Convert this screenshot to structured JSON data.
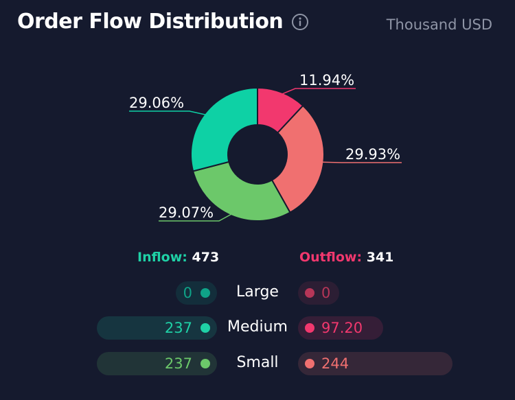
{
  "header": {
    "title": "Order Flow Distribution",
    "info_icon": "info-circle-icon",
    "unit": "Thousand USD"
  },
  "chart_data": {
    "type": "pie",
    "donut": true,
    "slices": [
      {
        "label": "11.94%",
        "value": 11.94,
        "color": "#f2386e"
      },
      {
        "label": "29.93%",
        "value": 29.93,
        "color": "#f07070"
      },
      {
        "label": "29.07%",
        "value": 29.07,
        "color": "#6cc86a"
      },
      {
        "label": "29.06%",
        "value": 29.06,
        "color": "#0ed1a5"
      }
    ]
  },
  "totals": {
    "inflow_label": "Inflow:",
    "inflow_value": "473",
    "outflow_label": "Outflow:",
    "outflow_value": "341"
  },
  "rows": [
    {
      "label": "Large",
      "inflow": "0",
      "outflow": "0",
      "inflow_color": "#0fa388",
      "outflow_color": "#b63658",
      "inflow_fraction": 0.08,
      "outflow_fraction": 0.08
    },
    {
      "label": "Medium",
      "inflow": "237",
      "outflow": "97.20",
      "inflow_color": "#1fd1a6",
      "outflow_color": "#f2386e",
      "inflow_fraction": 1.0,
      "outflow_fraction": 0.55
    },
    {
      "label": "Small",
      "inflow": "237",
      "outflow": "244",
      "inflow_color": "#6cc86a",
      "outflow_color": "#f07070",
      "inflow_fraction": 1.0,
      "outflow_fraction": 1.0
    }
  ]
}
